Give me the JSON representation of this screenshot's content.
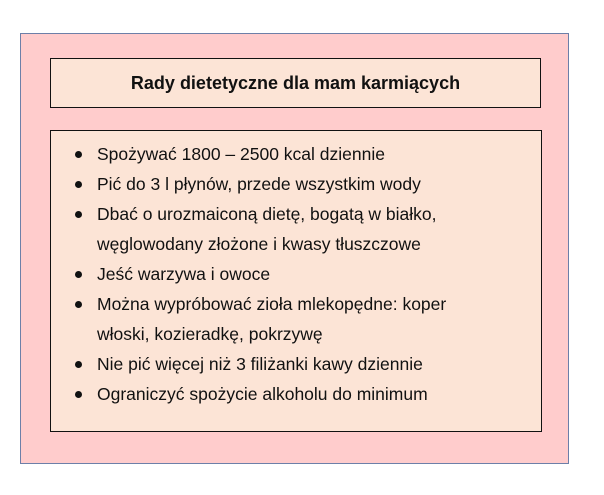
{
  "title": "Rady dietetyczne dla mam karmiących",
  "items": [
    {
      "lines": [
        "Spożywać 1800 – 2500 kcal dziennie"
      ]
    },
    {
      "lines": [
        "Pić do 3 l płynów, przede wszystkim wody"
      ]
    },
    {
      "lines": [
        "Dbać o urozmaiconą dietę, bogatą w białko,",
        "węglowodany złożone i kwasy tłuszczowe"
      ]
    },
    {
      "lines": [
        "Jeść warzywa i owoce"
      ]
    },
    {
      "lines": [
        "Można wypróbować zioła mlekopędne: koper",
        "włoski, kozieradkę, pokrzywę"
      ]
    },
    {
      "lines": [
        "Nie pić więcej niż 3 filiżanki kawy dziennie"
      ]
    },
    {
      "lines": [
        "Ograniczyć spożycie alkoholu do minimum"
      ]
    }
  ],
  "colors": {
    "background": "#ffcccc",
    "box": "#fce4d6",
    "frame": "#6d7fa8"
  }
}
